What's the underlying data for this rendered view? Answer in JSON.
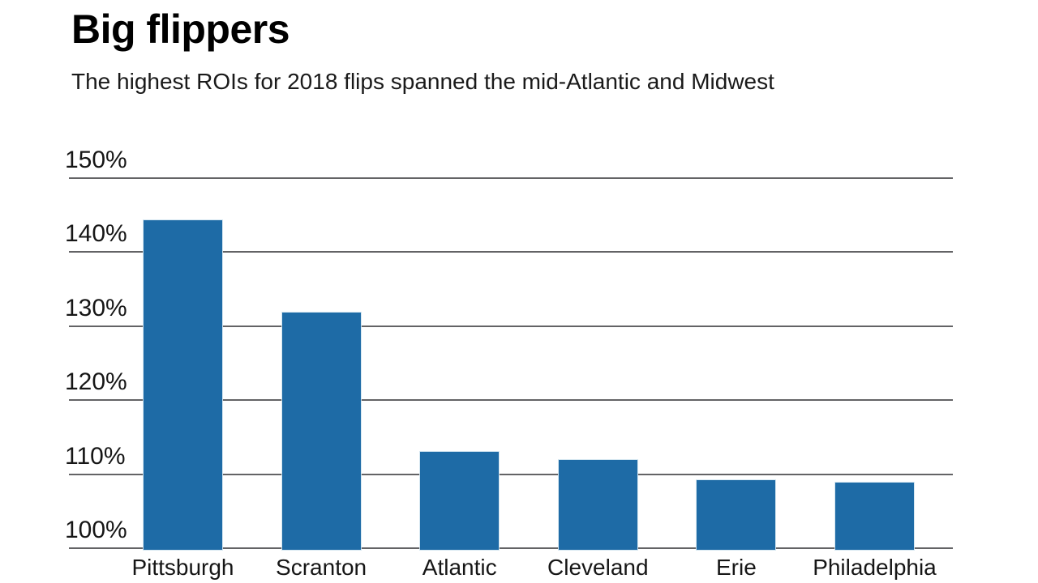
{
  "chart_data": {
    "type": "bar",
    "title": "Big flippers",
    "subtitle": "The highest ROIs for 2018 flips spanned the mid-Atlantic and Midwest",
    "categories": [
      "Pittsburgh",
      "Scranton",
      "Atlantic",
      "Cleveland",
      "Erie",
      "Philadelphia"
    ],
    "values": [
      144.3,
      131.8,
      113.0,
      111.9,
      109.2,
      108.8
    ],
    "value_suffix": "%",
    "xlabel": "",
    "ylabel": "",
    "ylim": [
      100,
      150
    ],
    "yticks": [
      100,
      110,
      120,
      130,
      140,
      150
    ],
    "ytick_suffix": "%",
    "grid": true,
    "legend_position": "none",
    "bar_color": "#1e6ba6",
    "gridline_color": "#636365",
    "text_color": "#161616",
    "background_color": "#ffffff"
  }
}
